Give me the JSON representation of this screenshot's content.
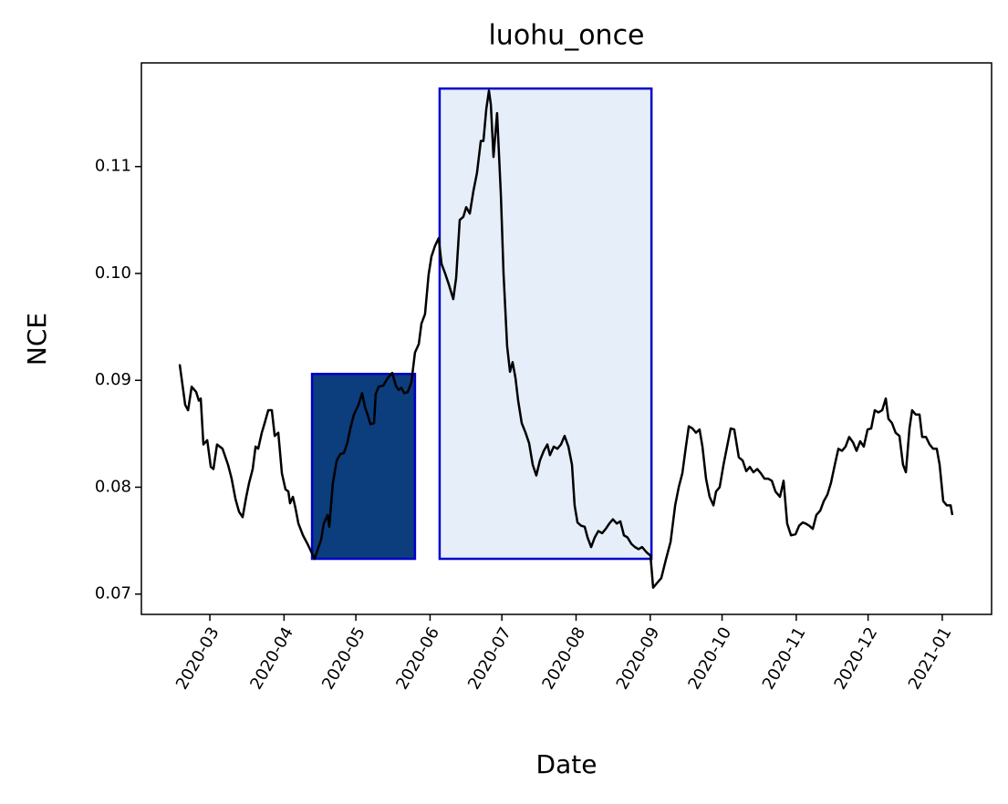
{
  "chart_data": {
    "type": "line",
    "title": "luohu_once",
    "xlabel": "Date",
    "ylabel": "NCE",
    "xlim": [
      -28.6,
      326.6
    ],
    "xticks": [
      {
        "value": 0,
        "label": "2020-03"
      },
      {
        "value": 31,
        "label": "2020-04"
      },
      {
        "value": 61,
        "label": "2020-05"
      },
      {
        "value": 92,
        "label": "2020-06"
      },
      {
        "value": 122,
        "label": "2020-07"
      },
      {
        "value": 153,
        "label": "2020-08"
      },
      {
        "value": 184,
        "label": "2020-09"
      },
      {
        "value": 214,
        "label": "2020-10"
      },
      {
        "value": 245,
        "label": "2020-11"
      },
      {
        "value": 275,
        "label": "2020-12"
      },
      {
        "value": 306,
        "label": "2021-01"
      }
    ],
    "ylim": [
      0.0681,
      0.1197
    ],
    "yticks": [
      0.07,
      0.08,
      0.09,
      {
        "value": 0.1,
        "label": "0.10"
      },
      0.11
    ],
    "region_edge_color": "#0000cc",
    "regions": [
      {
        "x": [
          42.7,
          85.7
        ],
        "y": [
          0.0733,
          0.0906
        ],
        "color": "#0c3d7d"
      },
      {
        "x": [
          96.0,
          184.5
        ],
        "y": [
          0.0733,
          0.1173
        ],
        "color": "#e6eef9"
      }
    ],
    "x": [
      -12.6,
      -10.3,
      -9.1,
      -7.6,
      -5.7,
      -4.6,
      -3.8,
      -2.7,
      -1.1,
      0.4,
      1.5,
      3.0,
      5.3,
      7.6,
      9.1,
      10.7,
      12.2,
      13.7,
      15.2,
      16.4,
      17.9,
      19.1,
      20.2,
      21.7,
      22.9,
      24.4,
      25.9,
      27.1,
      28.6,
      30.1,
      31.6,
      32.8,
      33.5,
      34.7,
      35.8,
      37.0,
      38.9,
      40.8,
      42.7,
      43.8,
      45.4,
      46.5,
      47.6,
      49.2,
      49.9,
      51.4,
      53.0,
      54.5,
      56.0,
      57.5,
      58.7,
      60.2,
      62.1,
      63.6,
      64.8,
      65.9,
      67.1,
      68.6,
      69.3,
      70.5,
      72.4,
      74.3,
      76.2,
      77.7,
      78.9,
      80.0,
      81.2,
      82.7,
      84.2,
      85.7,
      87.3,
      88.4,
      89.9,
      91.4,
      92.6,
      94.1,
      95.6,
      96.8,
      98.3,
      99.8,
      101.7,
      102.9,
      104.4,
      105.9,
      107.1,
      108.6,
      110.1,
      111.6,
      113.2,
      114.3,
      115.5,
      116.6,
      117.4,
      118.5,
      120.0,
      121.6,
      122.7,
      124.2,
      125.4,
      126.5,
      127.7,
      128.8,
      130.3,
      131.9,
      133.4,
      134.9,
      136.4,
      137.9,
      139.5,
      141.0,
      142.1,
      143.7,
      145.2,
      146.7,
      148.2,
      149.8,
      151.3,
      152.4,
      153.6,
      155.1,
      156.6,
      157.8,
      159.3,
      160.8,
      162.3,
      163.9,
      165.4,
      166.9,
      168.4,
      170.0,
      171.5,
      173.0,
      174.5,
      176.1,
      177.6,
      179.1,
      180.6,
      182.5,
      184.1,
      185.2,
      186.7,
      188.6,
      190.5,
      192.5,
      194.4,
      195.9,
      197.4,
      198.9,
      200.1,
      201.6,
      203.1,
      204.6,
      205.8,
      207.3,
      208.8,
      210.4,
      211.5,
      213.0,
      214.6,
      216.1,
      217.6,
      219.1,
      221.0,
      222.6,
      224.1,
      225.6,
      227.1,
      228.7,
      230.2,
      231.7,
      233.2,
      234.8,
      236.3,
      238.2,
      239.7,
      241.2,
      242.8,
      244.7,
      246.2,
      247.7,
      248.9,
      250.4,
      251.9,
      253.4,
      255.0,
      256.5,
      258.0,
      259.5,
      261.1,
      262.6,
      264.1,
      265.6,
      267.1,
      268.7,
      270.2,
      271.7,
      273.2,
      274.8,
      276.3,
      277.8,
      279.3,
      280.9,
      282.4,
      283.5,
      285.0,
      286.5,
      288.1,
      289.6,
      290.8,
      292.3,
      293.4,
      294.9,
      296.5,
      297.6,
      299.2,
      300.7,
      302.2,
      303.7,
      304.9,
      306.4,
      307.9,
      309.5,
      310.2
    ],
    "series": [
      {
        "color": "#000000",
        "values": [
          0.0915,
          0.0877,
          0.0872,
          0.0894,
          0.0889,
          0.0881,
          0.0883,
          0.084,
          0.0844,
          0.0819,
          0.0817,
          0.084,
          0.0836,
          0.0821,
          0.0808,
          0.0789,
          0.0777,
          0.0772,
          0.0791,
          0.0804,
          0.0817,
          0.0838,
          0.0836,
          0.0851,
          0.086,
          0.0872,
          0.0872,
          0.0848,
          0.0851,
          0.0813,
          0.0798,
          0.0796,
          0.0785,
          0.0791,
          0.078,
          0.0766,
          0.0755,
          0.0747,
          0.0738,
          0.0733,
          0.0744,
          0.0751,
          0.0766,
          0.0774,
          0.0763,
          0.0804,
          0.0825,
          0.0831,
          0.0832,
          0.0842,
          0.0855,
          0.0868,
          0.0877,
          0.0888,
          0.0875,
          0.0868,
          0.0859,
          0.086,
          0.0887,
          0.0894,
          0.0895,
          0.0902,
          0.0907,
          0.0895,
          0.0891,
          0.0893,
          0.0888,
          0.0889,
          0.0898,
          0.0926,
          0.0934,
          0.0953,
          0.0962,
          0.0999,
          0.1016,
          0.1026,
          0.1033,
          0.1009,
          0.1,
          0.099,
          0.0976,
          0.0996,
          0.105,
          0.1053,
          0.1062,
          0.1056,
          0.1077,
          0.1094,
          0.1124,
          0.1124,
          0.1154,
          0.1171,
          0.1158,
          0.1109,
          0.115,
          0.1073,
          0.1,
          0.0932,
          0.0908,
          0.0917,
          0.0902,
          0.0881,
          0.086,
          0.0851,
          0.0841,
          0.0821,
          0.0811,
          0.0825,
          0.0834,
          0.084,
          0.083,
          0.0838,
          0.0836,
          0.084,
          0.0848,
          0.0838,
          0.0821,
          0.0783,
          0.0767,
          0.0764,
          0.0763,
          0.0753,
          0.0744,
          0.0753,
          0.0759,
          0.0757,
          0.0761,
          0.0766,
          0.077,
          0.0766,
          0.0768,
          0.0755,
          0.0753,
          0.0747,
          0.0744,
          0.0742,
          0.0744,
          0.0739,
          0.0736,
          0.0706,
          0.071,
          0.0715,
          0.0732,
          0.0749,
          0.0783,
          0.08,
          0.0813,
          0.0838,
          0.0857,
          0.0855,
          0.0851,
          0.0854,
          0.0838,
          0.0808,
          0.0791,
          0.0783,
          0.0796,
          0.08,
          0.0821,
          0.0838,
          0.0855,
          0.0854,
          0.0828,
          0.0825,
          0.0815,
          0.0819,
          0.0814,
          0.0817,
          0.0813,
          0.0808,
          0.0808,
          0.0806,
          0.0796,
          0.0791,
          0.0806,
          0.0766,
          0.0755,
          0.0756,
          0.0764,
          0.0767,
          0.0766,
          0.0764,
          0.0761,
          0.0774,
          0.0778,
          0.0787,
          0.0793,
          0.0804,
          0.0821,
          0.0836,
          0.0834,
          0.0838,
          0.0847,
          0.0842,
          0.0834,
          0.0843,
          0.0838,
          0.0854,
          0.0855,
          0.0872,
          0.087,
          0.0872,
          0.0883,
          0.0864,
          0.086,
          0.0851,
          0.0848,
          0.0821,
          0.0814,
          0.0855,
          0.0872,
          0.0868,
          0.0868,
          0.0847,
          0.0847,
          0.084,
          0.0836,
          0.0836,
          0.0821,
          0.0787,
          0.0783,
          0.0783,
          0.0774
        ]
      }
    ]
  }
}
